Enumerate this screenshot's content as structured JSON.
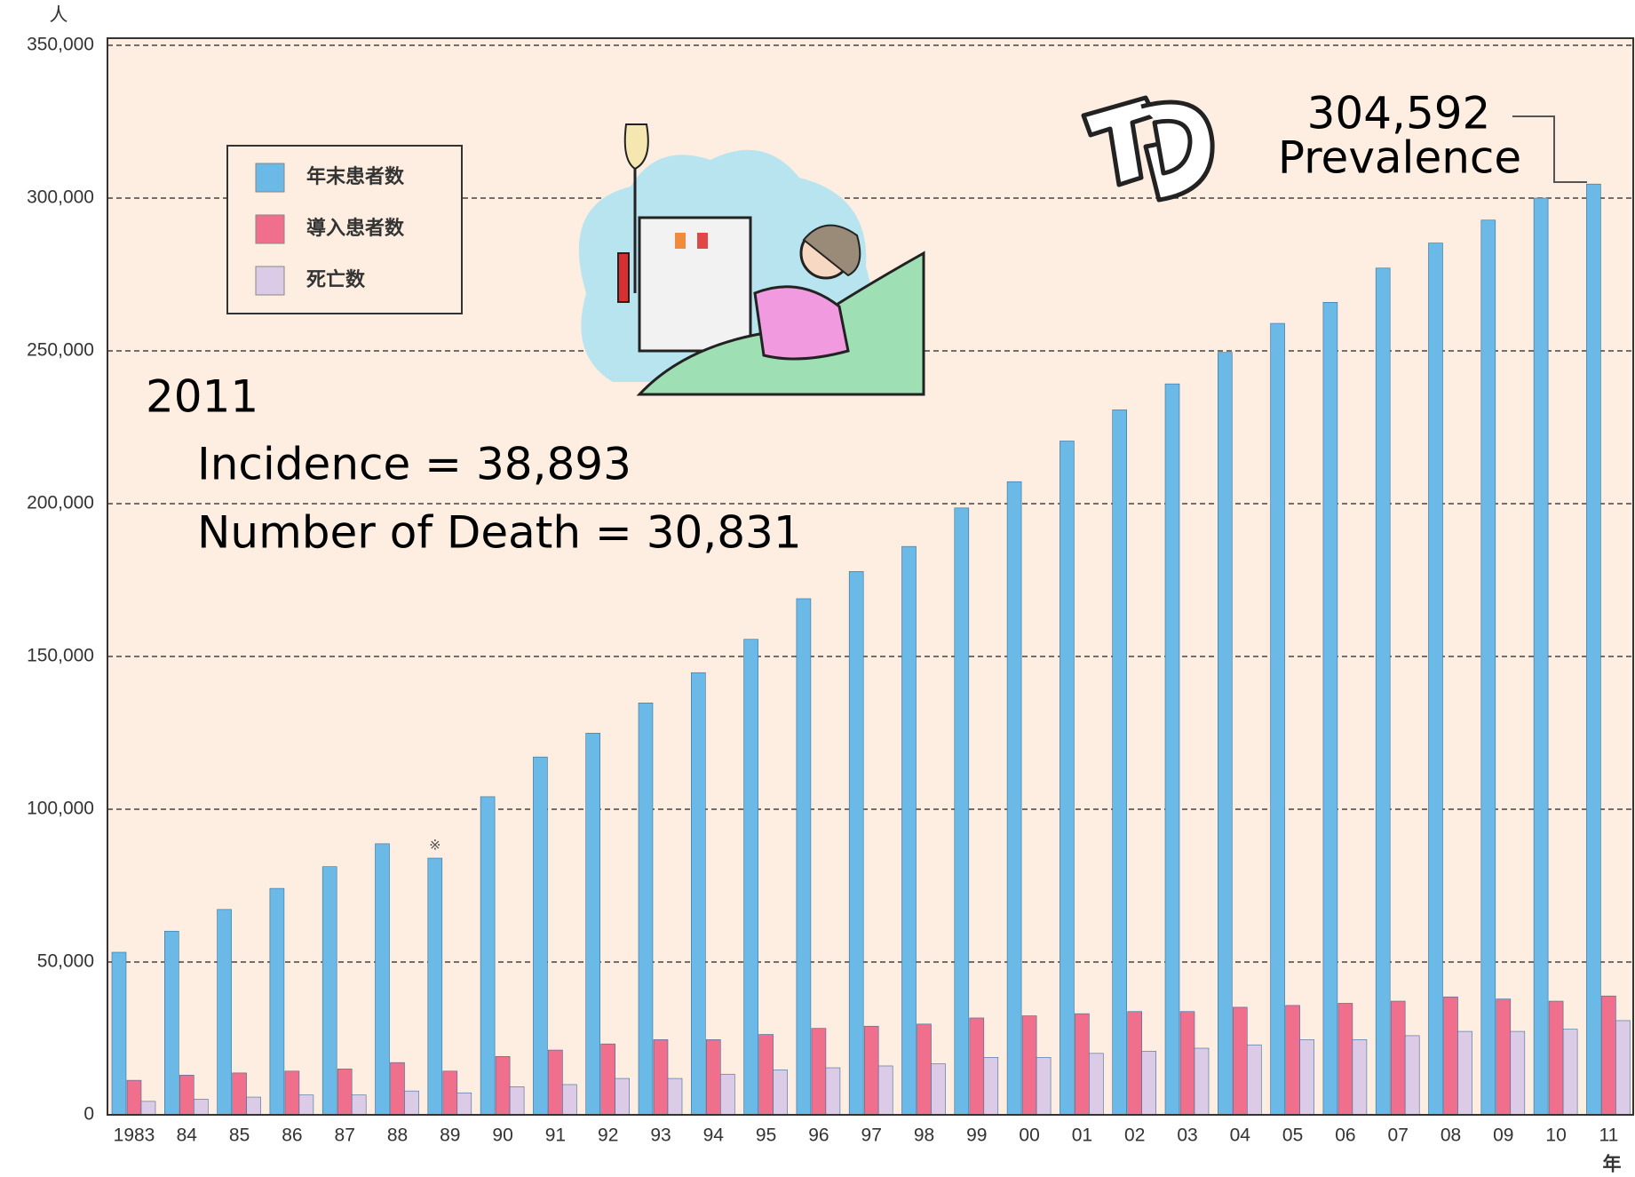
{
  "chart_data": {
    "type": "bar",
    "y_unit": "人",
    "x_unit": "年",
    "categories": [
      "1983",
      "84",
      "85",
      "86",
      "87",
      "88",
      "89",
      "90",
      "91",
      "92",
      "93",
      "94",
      "95",
      "96",
      "97",
      "98",
      "99",
      "00",
      "01",
      "02",
      "03",
      "04",
      "05",
      "06",
      "07",
      "08",
      "09",
      "10",
      "11"
    ],
    "series": [
      {
        "name": "年末患者数",
        "color": "#6bb9e6",
        "values": [
          53200,
          60100,
          67200,
          74100,
          81200,
          88700,
          84000,
          104100,
          117100,
          124900,
          134800,
          144700,
          155600,
          168900,
          177800,
          186000,
          198600,
          207200,
          220500,
          230700,
          239200,
          249500,
          259000,
          265900,
          277100,
          285300,
          292800,
          300000,
          304592
        ]
      },
      {
        "name": "導入患者数",
        "color": "#ef6f8c",
        "values": [
          11300,
          13000,
          13700,
          14300,
          15000,
          17100,
          14300,
          19100,
          21200,
          23200,
          24600,
          24600,
          26300,
          28300,
          29000,
          29700,
          31700,
          32400,
          33100,
          33800,
          33800,
          35200,
          35800,
          36500,
          37200,
          38600,
          37900,
          37200,
          38893
        ]
      },
      {
        "name": "死亡数",
        "color": "#dccbe6",
        "values": [
          4400,
          5100,
          5800,
          6500,
          6500,
          7800,
          7200,
          9200,
          9900,
          11900,
          11900,
          13300,
          14700,
          15400,
          16000,
          16700,
          18800,
          18800,
          20100,
          20800,
          21800,
          22900,
          24600,
          24600,
          25900,
          27300,
          27300,
          28000,
          30831
        ]
      }
    ],
    "ylim": [
      0,
      350000
    ],
    "yticks": [
      0,
      {
        "value": 50000,
        "label": "50,000"
      },
      {
        "value": 100000,
        "label": "100,000"
      },
      {
        "value": 150000,
        "label": "150,000"
      },
      {
        "value": 200000,
        "label": "200,000"
      },
      {
        "value": 250000,
        "label": "250,000"
      },
      {
        "value": 300000,
        "label": "300,000"
      },
      {
        "value": 350000,
        "label": "350,000"
      }
    ],
    "grid": true,
    "legend": "upper-left",
    "annotations": {
      "year": "2011",
      "incidence": "Incidence  = 38,893",
      "death": "Number of Death = 30,831",
      "prevalence_value": "304,592",
      "prevalence_label": "Prevalence",
      "note_mark": "※"
    }
  }
}
